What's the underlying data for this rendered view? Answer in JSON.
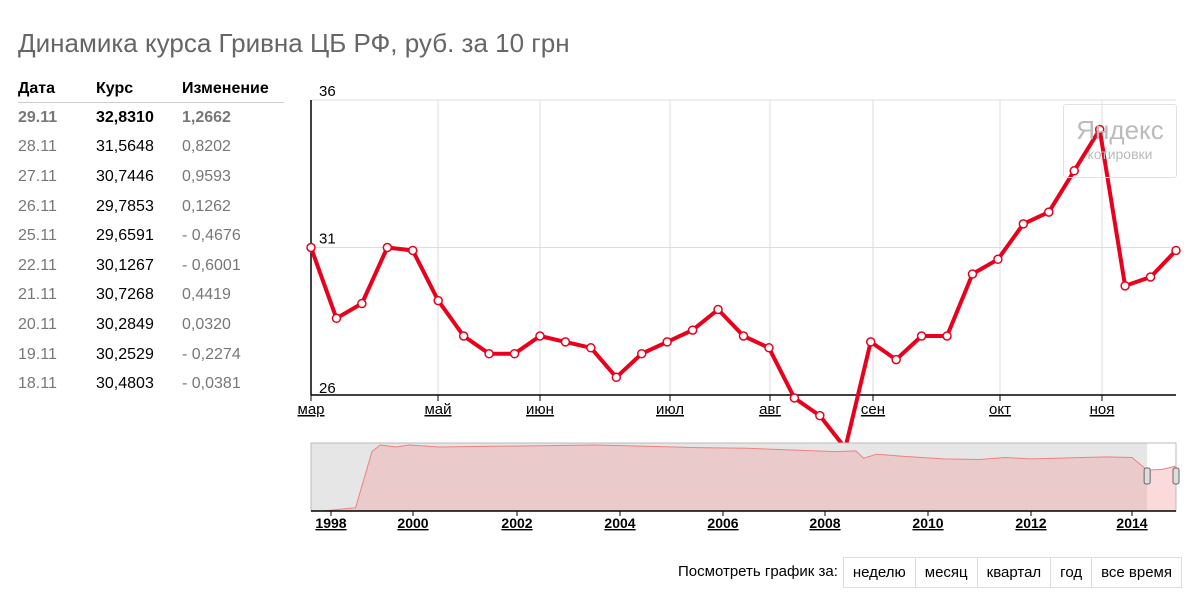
{
  "title": "Динамика курса Гривна ЦБ РФ, руб. за 10 грн",
  "table": {
    "headers": [
      "Дата",
      "Курс",
      "Изменение"
    ],
    "rows": [
      [
        "29.11",
        "32,8310",
        "1,2662"
      ],
      [
        "28.11",
        "31,5648",
        "0,8202"
      ],
      [
        "27.11",
        "30,7446",
        "0,9593"
      ],
      [
        "26.11",
        "29,7853",
        "0,1262"
      ],
      [
        "25.11",
        "29,6591",
        "- 0,4676"
      ],
      [
        "22.11",
        "30,1267",
        "- 0,6001"
      ],
      [
        "21.11",
        "30,7268",
        "0,4419"
      ],
      [
        "20.11",
        "30,2849",
        "0,0320"
      ],
      [
        "19.11",
        "30,2529",
        "- 0,2274"
      ],
      [
        "18.11",
        "30,4803",
        "- 0,0381"
      ]
    ]
  },
  "watermark": {
    "line1": "Яндекс",
    "line2": "котировки"
  },
  "chart_data": {
    "type": "line",
    "ylim": [
      26,
      36
    ],
    "yticks": [
      "36",
      "31",
      "26"
    ],
    "ytick_values": [
      36,
      31,
      26
    ],
    "xticks": [
      "мар",
      "май",
      "июн",
      "июл",
      "авг",
      "сен",
      "окт",
      "ноя"
    ],
    "line_color": "#e8001c",
    "grid": true,
    "series": [
      {
        "values": [
          31.0,
          28.6,
          29.1,
          31.0,
          30.9,
          29.2,
          28.0,
          27.4,
          27.4,
          28.0,
          27.8,
          27.6,
          26.6,
          27.4,
          27.8,
          28.2,
          28.9,
          28.0,
          27.6,
          25.9,
          25.3,
          24.2,
          27.8,
          27.2,
          28.0,
          28.0,
          30.1,
          30.6,
          31.8,
          32.2,
          33.6,
          35.0,
          29.7,
          30.0,
          30.9
        ]
      }
    ],
    "overview": {
      "type": "area",
      "xticks": [
        "1998",
        "2000",
        "2002",
        "2004",
        "2006",
        "2008",
        "2010",
        "2012",
        "2014"
      ],
      "x": [
        1997.8,
        1998.6,
        1999.0,
        1999.2,
        1999.6,
        1999.9,
        2000.5,
        2001.5,
        2002.5,
        2003.5,
        2004.5,
        2005.5,
        2006.5,
        2007.5,
        2008.2,
        2008.6,
        2008.75,
        2009.0,
        2009.5,
        2010.3,
        2011.0,
        2011.5,
        2012.0,
        2012.5,
        2013.0,
        2013.5,
        2014.0,
        2014.3,
        2014.6,
        2014.9
      ],
      "y": [
        0.0,
        0.05,
        0.9,
        1.0,
        0.97,
        1.0,
        0.97,
        0.98,
        0.99,
        1.0,
        0.98,
        0.96,
        0.95,
        0.92,
        0.9,
        0.91,
        0.8,
        0.86,
        0.83,
        0.79,
        0.78,
        0.81,
        0.79,
        0.8,
        0.81,
        0.82,
        0.81,
        0.62,
        0.63,
        0.68
      ],
      "selection": [
        2014.3,
        2014.9
      ]
    }
  },
  "controls": {
    "label": "Посмотреть график за:",
    "buttons": [
      "неделю",
      "месяц",
      "квартал",
      "год",
      "все время"
    ]
  }
}
